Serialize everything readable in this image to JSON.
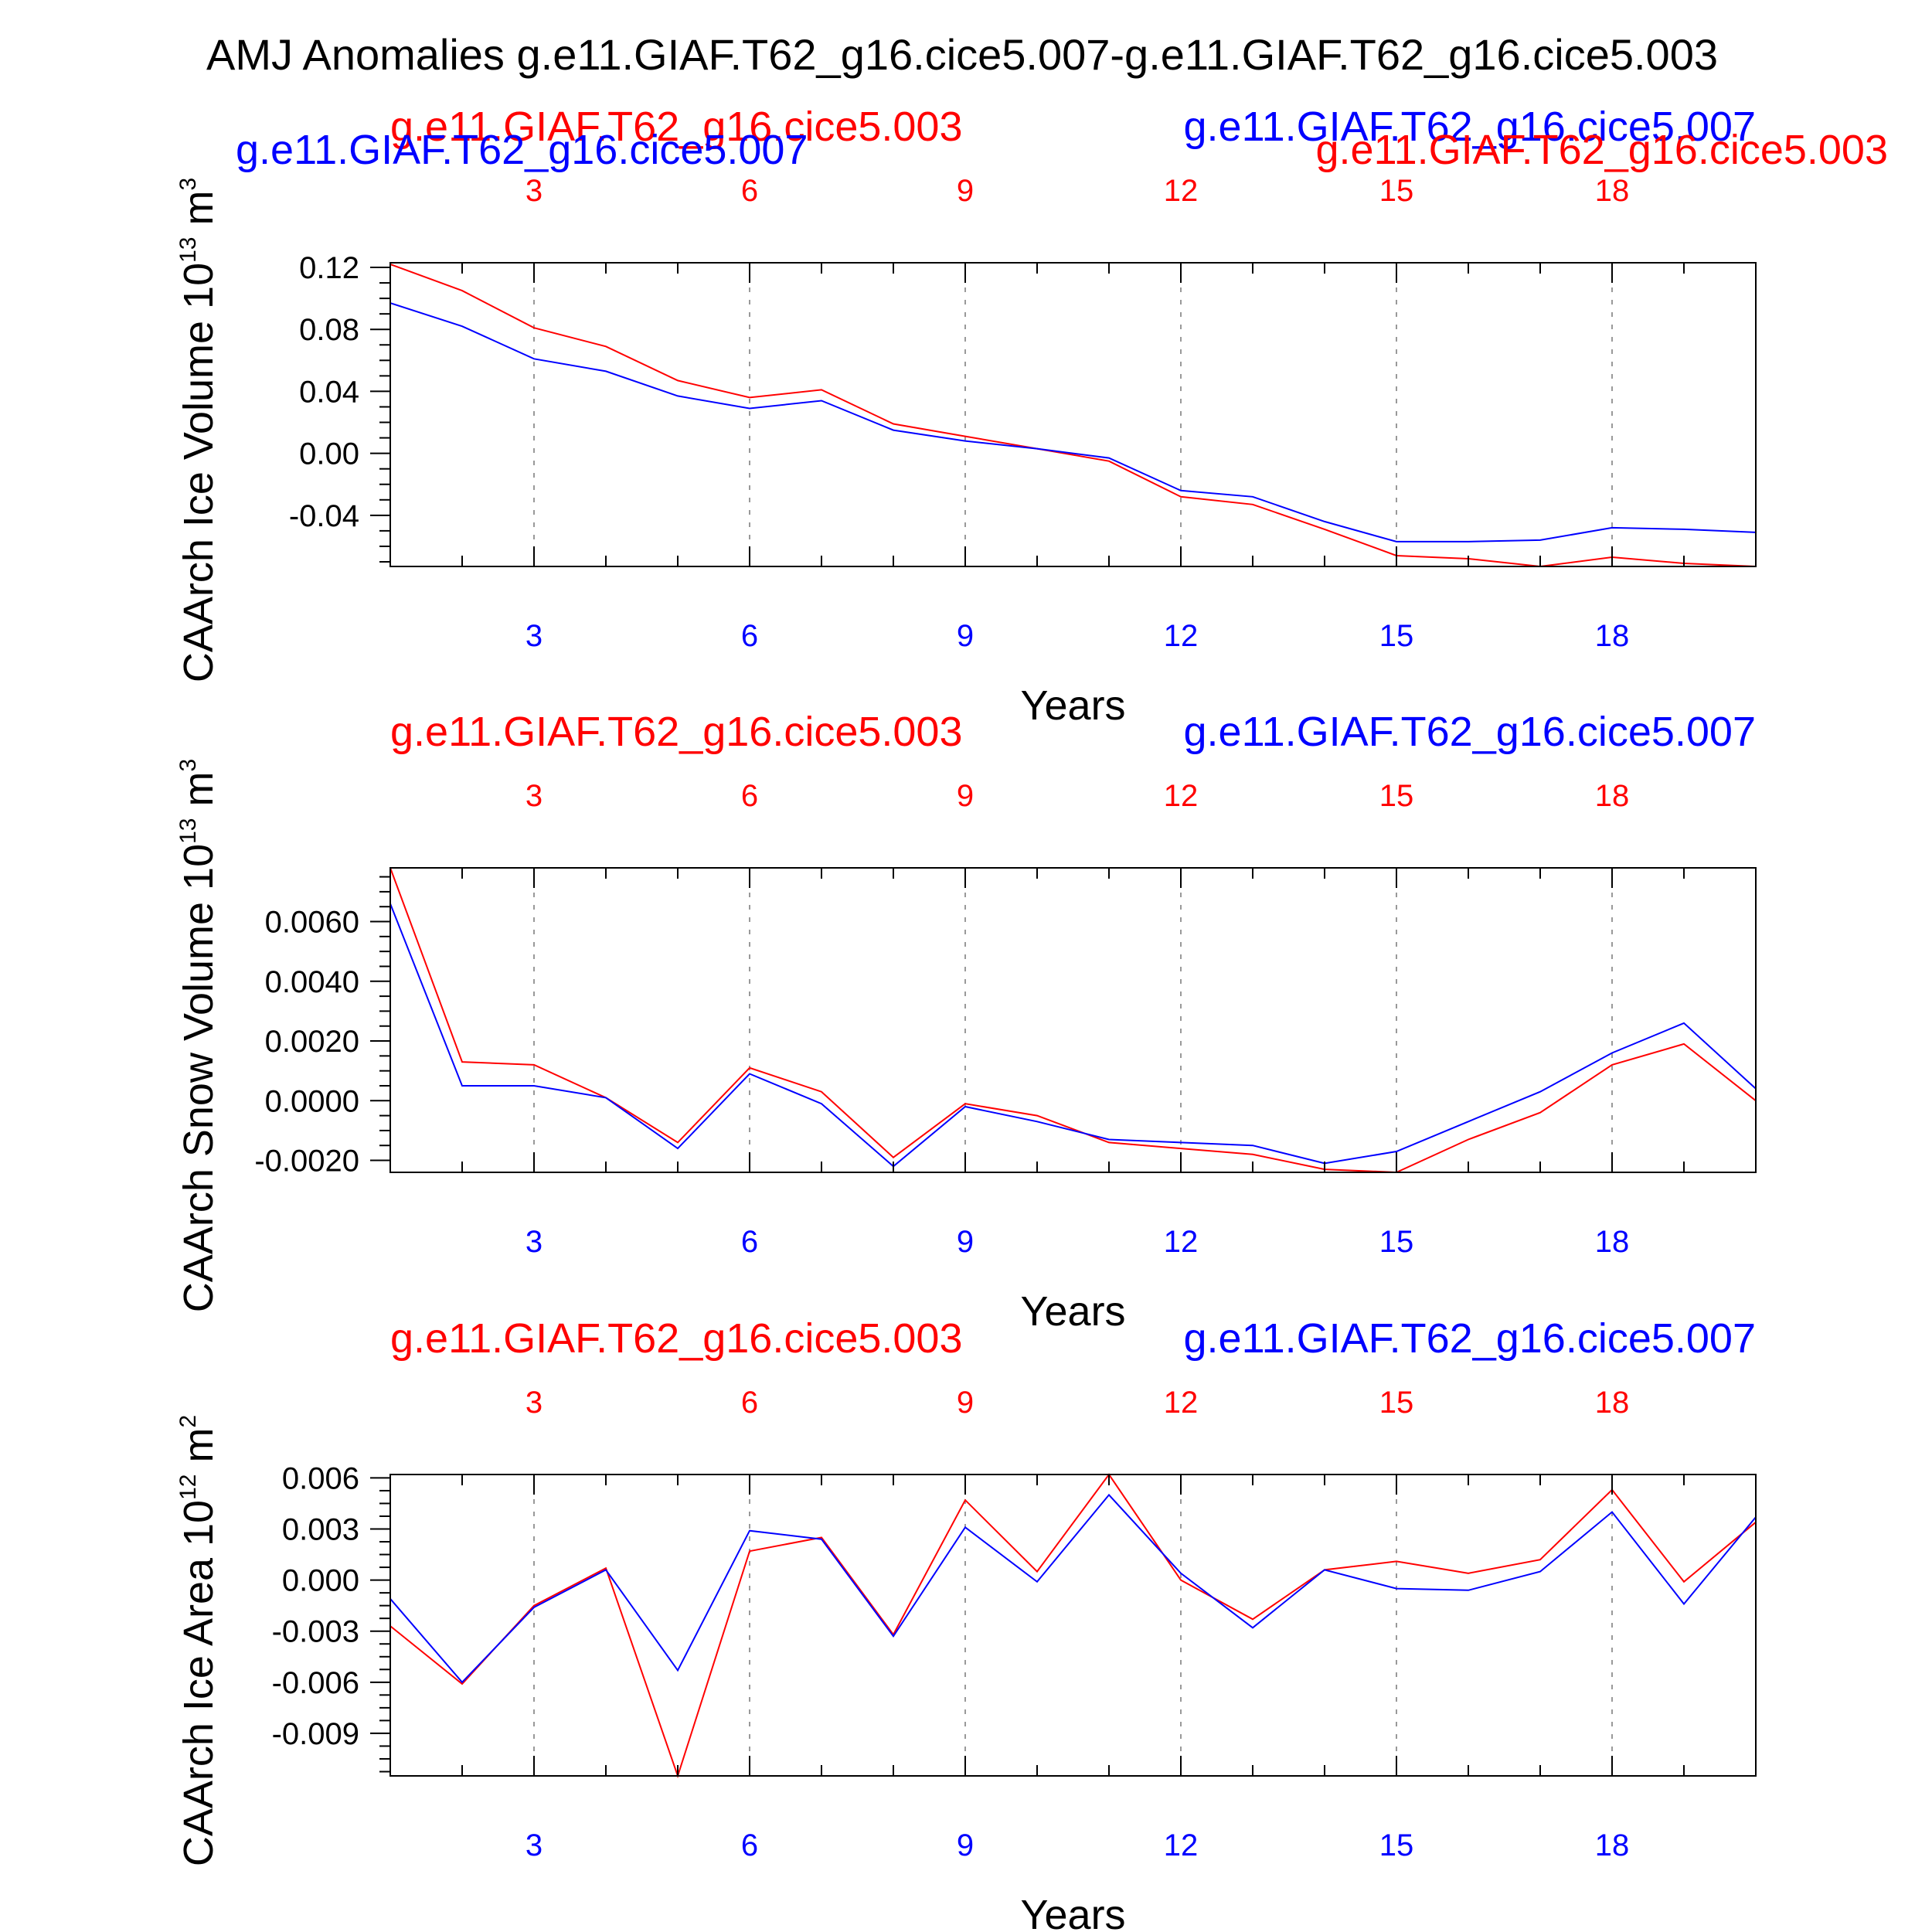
{
  "title": "AMJ Anomalies g.e11.GIAF.T62_g16.cice5.007-g.e11.GIAF.T62_g16.cice5.003",
  "colors": {
    "case003": "#ff0000",
    "case007": "#0000ff",
    "axis": "#000000",
    "grid": "#999999"
  },
  "chart_data": [
    {
      "type": "line",
      "ylabel": "CAArch Ice Volume 10",
      "ylabel_exp": "13",
      "ylabel_unit": " m",
      "ylabel_unit_exp": "3",
      "xlabel": "Years",
      "legend_red": "g.e11.GIAF.T62_g16.cice5.003",
      "legend_blue": "g.e11.GIAF.T62_g16.cice5.007",
      "legend_red_2": "g.e11.GIAF.T62_g16.cice5.003",
      "legend_blue_2": "g.e11.GIAF.T62_g16.cice5.007",
      "xlim": [
        1,
        20
      ],
      "ylim": [
        -0.073,
        0.123
      ],
      "xticks": [
        "3",
        "6",
        "9",
        "12",
        "15",
        "18"
      ],
      "yticks": [
        "0.12",
        "0.08",
        "0.04",
        "0.00",
        "-0.04"
      ],
      "x": [
        1,
        2,
        3,
        4,
        5,
        6,
        7,
        8,
        9,
        10,
        11,
        12,
        13,
        14,
        15,
        16,
        17,
        18,
        19,
        20
      ],
      "series": [
        {
          "name": "g.e11.GIAF.T62_g16.cice5.003",
          "color": "red",
          "values": [
            0.122,
            0.105,
            0.081,
            0.069,
            0.047,
            0.036,
            0.041,
            0.019,
            0.011,
            0.003,
            -0.005,
            -0.028,
            -0.033,
            -0.049,
            -0.066,
            -0.068,
            -0.073,
            -0.067,
            -0.071,
            -0.073
          ]
        },
        {
          "name": "g.e11.GIAF.T62_g16.cice5.007",
          "color": "blue",
          "values": [
            0.097,
            0.082,
            0.061,
            0.053,
            0.037,
            0.029,
            0.034,
            0.015,
            0.008,
            0.003,
            -0.003,
            -0.024,
            -0.028,
            -0.044,
            -0.057,
            -0.057,
            -0.056,
            -0.048,
            -0.049,
            -0.051
          ]
        }
      ]
    },
    {
      "type": "line",
      "ylabel": "CAArch Snow Volume 10",
      "ylabel_exp": "13",
      "ylabel_unit": " m",
      "ylabel_unit_exp": "3",
      "xlabel": "Years",
      "legend_red": "g.e11.GIAF.T62_g16.cice5.003",
      "legend_blue": "g.e11.GIAF.T62_g16.cice5.007",
      "xlim": [
        1,
        20
      ],
      "ylim": [
        -0.0024,
        0.0078
      ],
      "xticks": [
        "3",
        "6",
        "9",
        "12",
        "15",
        "18"
      ],
      "yticks": [
        "0.0060",
        "0.0040",
        "0.0020",
        "0.0000",
        "-0.0020"
      ],
      "x": [
        1,
        2,
        3,
        4,
        5,
        6,
        7,
        8,
        9,
        10,
        11,
        12,
        13,
        14,
        15,
        16,
        17,
        18,
        19,
        20
      ],
      "series": [
        {
          "name": "g.e11.GIAF.T62_g16.cice5.003",
          "color": "red",
          "values": [
            0.0078,
            0.0013,
            0.0012,
            0.0001,
            -0.0014,
            0.0011,
            0.0003,
            -0.0019,
            -0.0001,
            -0.0005,
            -0.0014,
            -0.0016,
            -0.0018,
            -0.0023,
            -0.0024,
            -0.0013,
            -0.0004,
            0.0012,
            0.0019,
            0.0
          ]
        },
        {
          "name": "g.e11.GIAF.T62_g16.cice5.007",
          "color": "blue",
          "values": [
            0.0066,
            0.0005,
            0.0005,
            0.0001,
            -0.0016,
            0.0009,
            -0.0001,
            -0.0022,
            -0.0002,
            -0.0007,
            -0.0013,
            -0.0014,
            -0.0015,
            -0.0021,
            -0.0017,
            -0.0007,
            0.0003,
            0.0016,
            0.0026,
            0.0004
          ]
        }
      ]
    },
    {
      "type": "line",
      "ylabel": "CAArch Ice Area 10",
      "ylabel_exp": "12",
      "ylabel_unit": " m",
      "ylabel_unit_exp": "2",
      "xlabel": "Years",
      "legend_red": "g.e11.GIAF.T62_g16.cice5.003",
      "legend_blue": "g.e11.GIAF.T62_g16.cice5.007",
      "xlim": [
        1,
        20
      ],
      "ylim": [
        -0.0115,
        0.0062
      ],
      "xticks": [
        "3",
        "6",
        "9",
        "12",
        "15",
        "18"
      ],
      "yticks": [
        "0.006",
        "0.003",
        "0.000",
        "-0.003",
        "-0.006",
        "-0.009"
      ],
      "x": [
        1,
        2,
        3,
        4,
        5,
        6,
        7,
        8,
        9,
        10,
        11,
        12,
        13,
        14,
        15,
        16,
        17,
        18,
        19,
        20
      ],
      "series": [
        {
          "name": "g.e11.GIAF.T62_g16.cice5.003",
          "color": "red",
          "values": [
            -0.0027,
            -0.0061,
            -0.0015,
            0.0007,
            -0.0115,
            0.0017,
            0.0025,
            -0.0032,
            0.0047,
            0.0005,
            0.0062,
            0.0,
            -0.0023,
            0.0006,
            0.0011,
            0.0004,
            0.0012,
            0.0053,
            -0.0001,
            0.0034
          ]
        },
        {
          "name": "g.e11.GIAF.T62_g16.cice5.007",
          "color": "blue",
          "values": [
            -0.0011,
            -0.006,
            -0.0016,
            0.0006,
            -0.0053,
            0.0029,
            0.0024,
            -0.0033,
            0.0031,
            -0.0001,
            0.005,
            0.0004,
            -0.0028,
            0.0006,
            -0.0005,
            -0.0006,
            0.0005,
            0.004,
            -0.0014,
            0.0037
          ]
        }
      ]
    }
  ]
}
